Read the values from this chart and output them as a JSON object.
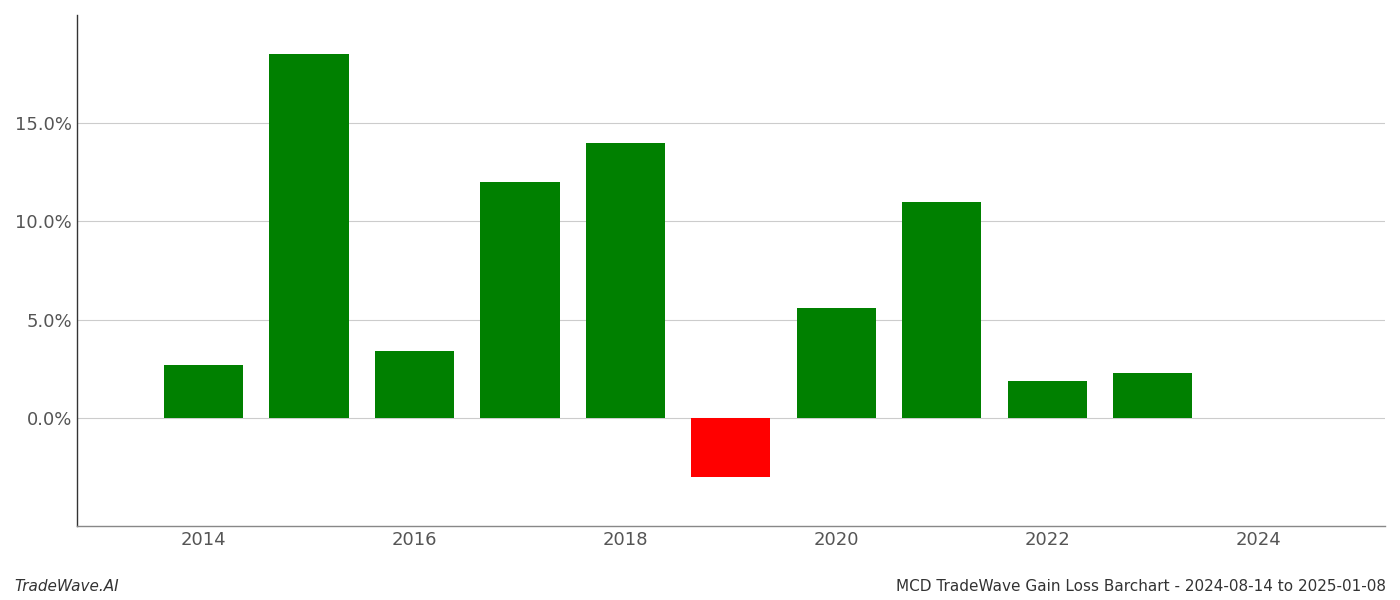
{
  "years": [
    2014,
    2015,
    2016,
    2017,
    2018,
    2019,
    2020,
    2021,
    2022,
    2023
  ],
  "values": [
    0.027,
    0.185,
    0.034,
    0.12,
    0.14,
    -0.03,
    0.056,
    0.11,
    0.019,
    0.023
  ],
  "colors": [
    "#008000",
    "#008000",
    "#008000",
    "#008000",
    "#008000",
    "#ff0000",
    "#008000",
    "#008000",
    "#008000",
    "#008000"
  ],
  "ylim": [
    -0.055,
    0.205
  ],
  "yticks": [
    0.0,
    0.05,
    0.1,
    0.15
  ],
  "xlim": [
    2012.8,
    2025.2
  ],
  "xticks": [
    2014,
    2016,
    2018,
    2020,
    2022,
    2024
  ],
  "bar_width": 0.75,
  "grid_color": "#cccccc",
  "background_color": "#ffffff",
  "footer_left": "TradeWave.AI",
  "footer_right": "MCD TradeWave Gain Loss Barchart - 2024-08-14 to 2025-01-08",
  "footer_fontsize": 11,
  "tick_fontsize": 13,
  "spine_color": "#888888",
  "left_spine_color": "#333333"
}
